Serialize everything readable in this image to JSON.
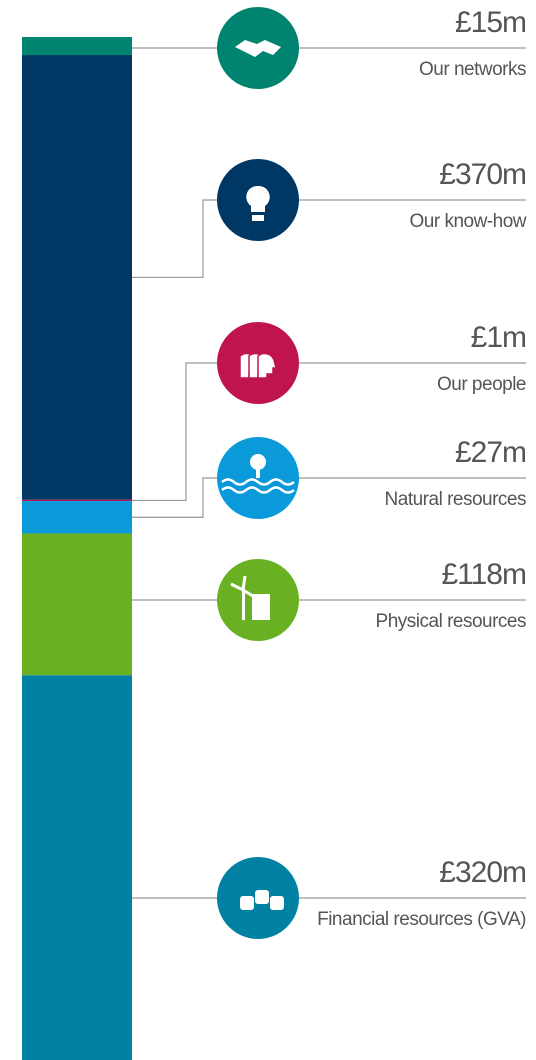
{
  "chart_data": {
    "type": "stacked_bar",
    "categories": [
      "Our networks",
      "Our know-how",
      "Our people",
      "Natural resources",
      "Physical resources",
      "Financial resources (GVA)"
    ],
    "values": [
      15,
      370,
      1,
      27,
      118,
      320
    ],
    "value_labels": [
      "£15m",
      "£370m",
      "£1m",
      "£27m",
      "£118m",
      "£320m"
    ],
    "colors": [
      "#00836f",
      "#003865",
      "#c0144f",
      "#0a9ad9",
      "#6ab023",
      "#0081a3"
    ]
  }
}
